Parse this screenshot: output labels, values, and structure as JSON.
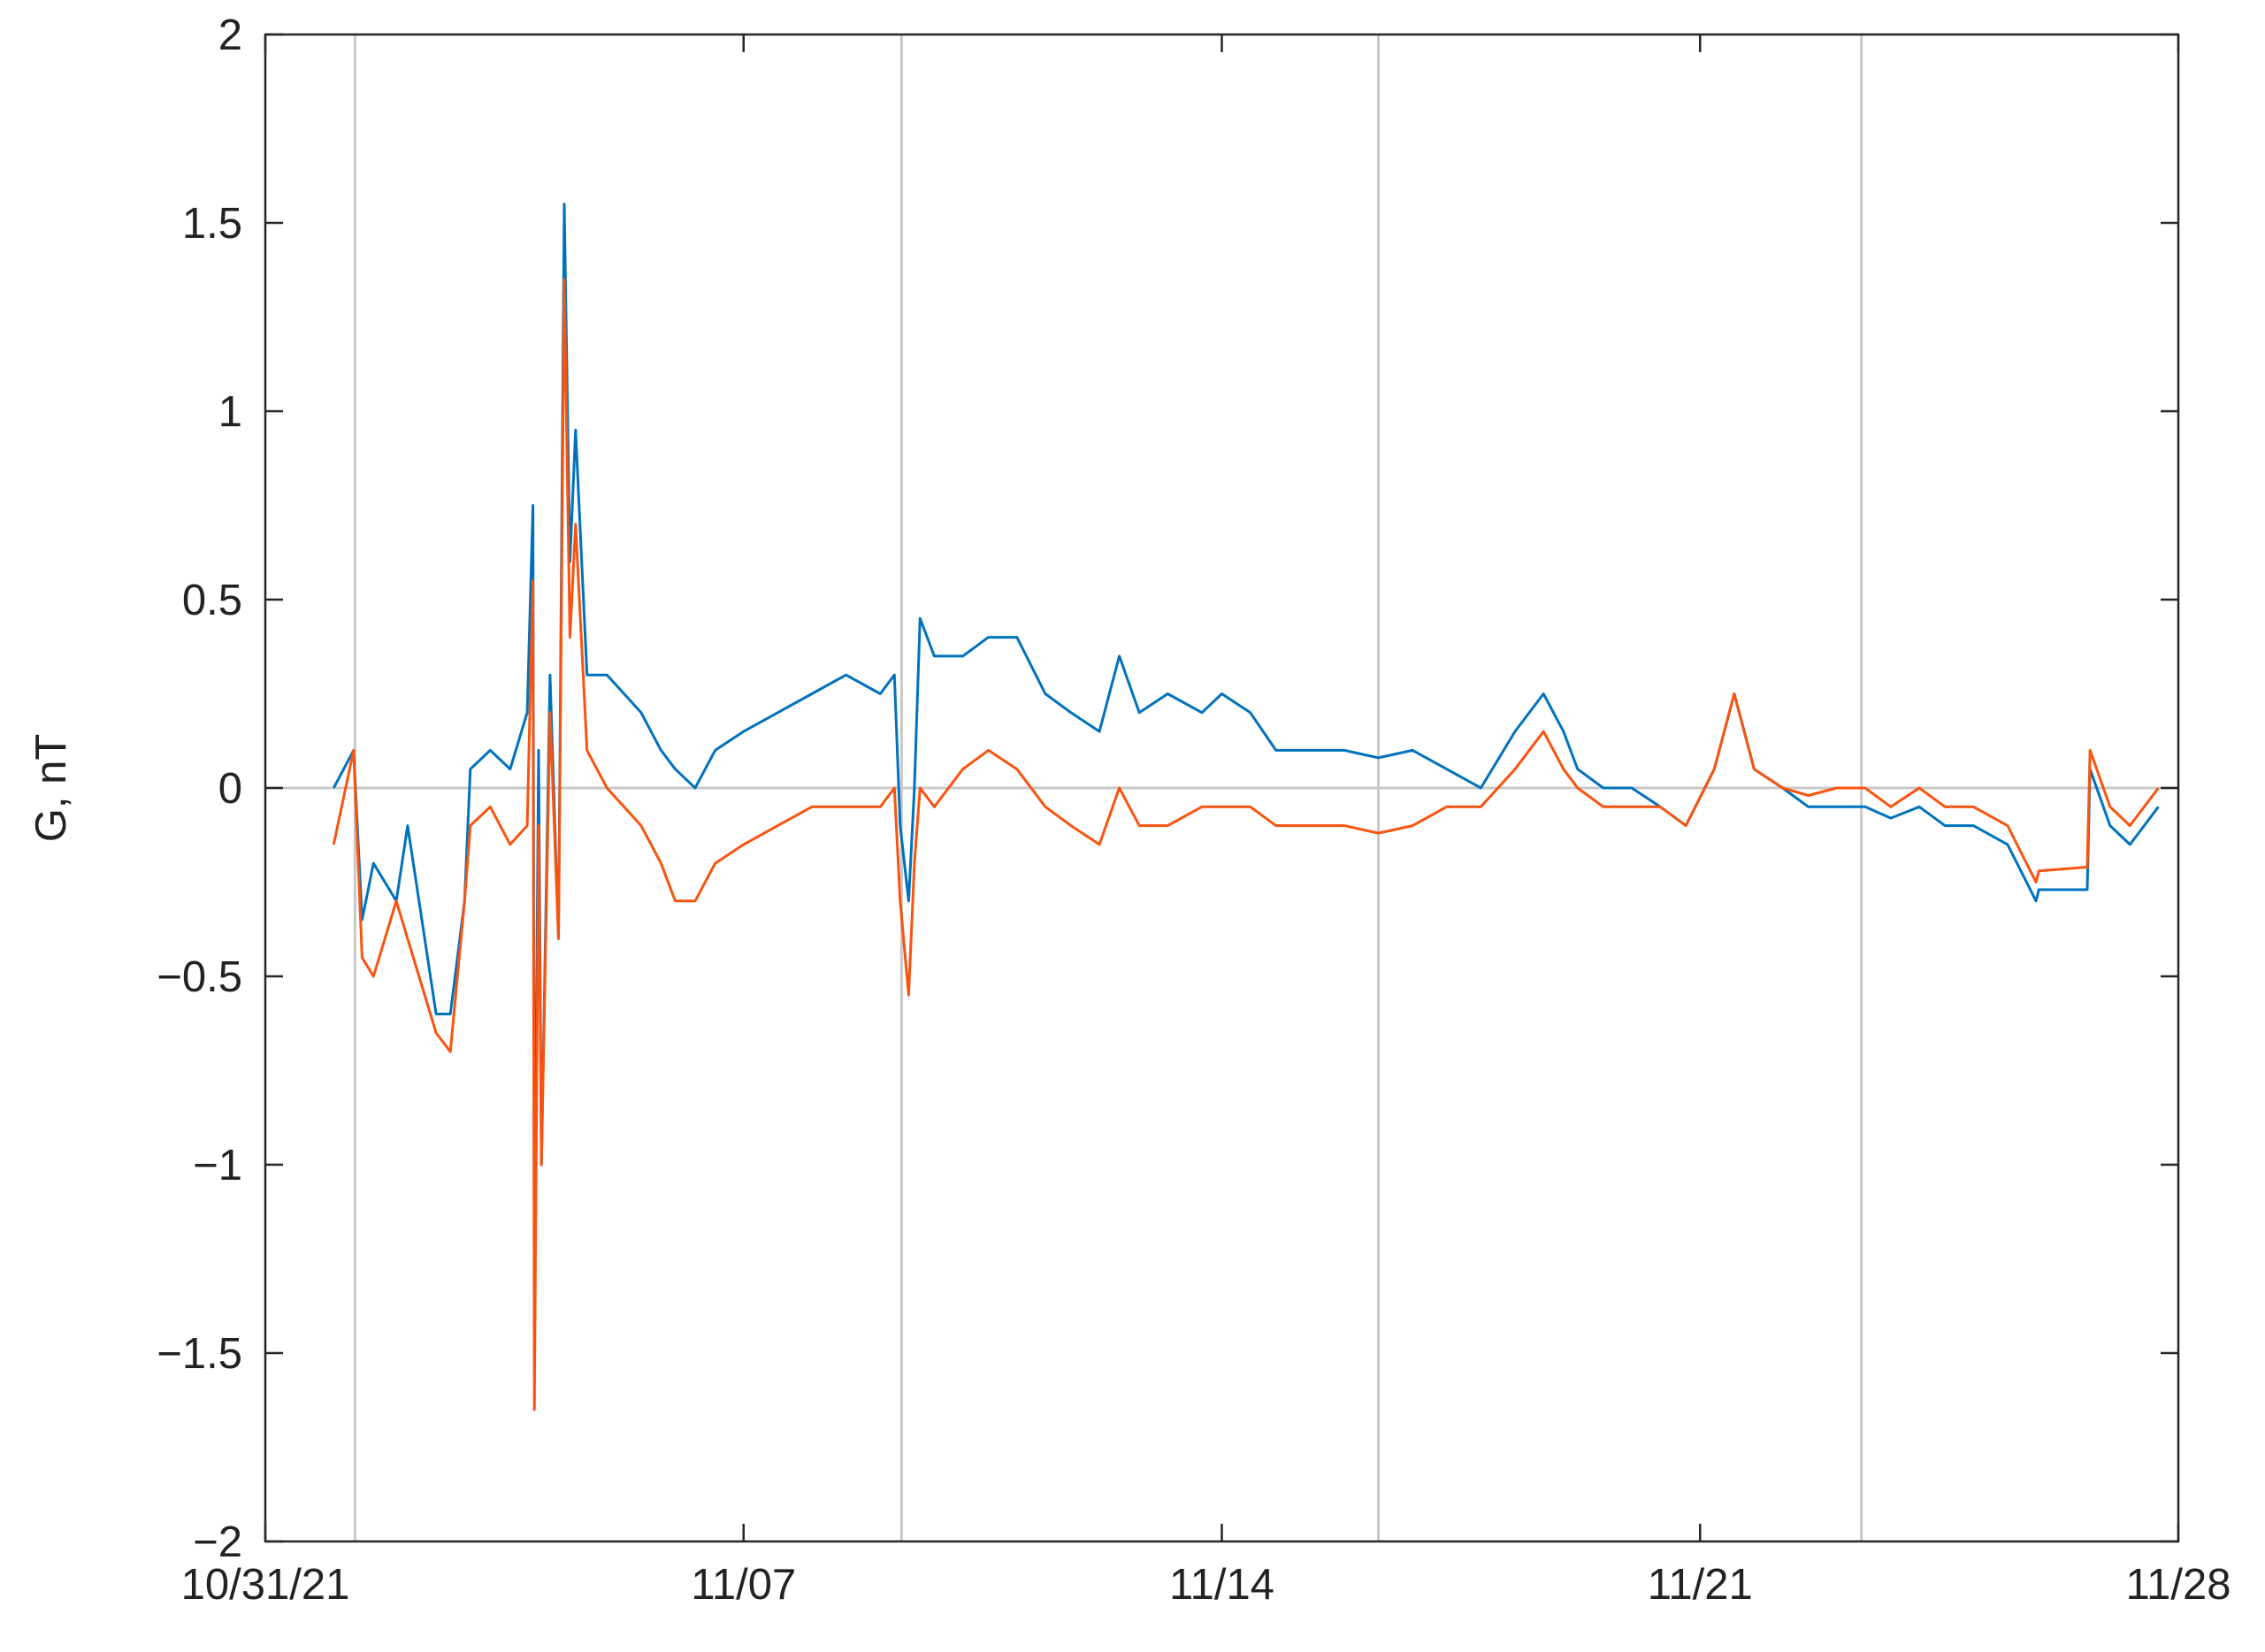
{
  "chart_data": {
    "type": "line",
    "ylabel": "G, nT",
    "x": [
      "2021-11-01T00:00",
      "2021-11-01T07:00",
      "2021-11-01T10:00",
      "2021-11-01T14:00",
      "2021-11-01T22:00",
      "2021-11-02T02:00",
      "2021-11-02T12:00",
      "2021-11-02T17:00",
      "2021-11-02T22:00",
      "2021-11-03T00:00",
      "2021-11-03T07:00",
      "2021-11-03T14:00",
      "2021-11-03T20:00",
      "2021-11-03T22:00",
      "2021-11-03T22:30",
      "2021-11-04T00:00",
      "2021-11-04T01:00",
      "2021-11-04T04:00",
      "2021-11-04T07:00",
      "2021-11-04T09:00",
      "2021-11-04T11:00",
      "2021-11-04T13:00",
      "2021-11-04T17:00",
      "2021-11-05T00:00",
      "2021-11-05T12:00",
      "2021-11-05T19:00",
      "2021-11-06T00:00",
      "2021-11-06T07:00",
      "2021-11-06T14:00",
      "2021-11-07T00:00",
      "2021-11-07T12:00",
      "2021-11-08T00:00",
      "2021-11-08T12:00",
      "2021-11-09T00:00",
      "2021-11-09T05:00",
      "2021-11-09T07:00",
      "2021-11-09T10:00",
      "2021-11-09T12:00",
      "2021-11-09T14:00",
      "2021-11-09T19:00",
      "2021-11-10T05:00",
      "2021-11-10T14:00",
      "2021-11-11T00:00",
      "2021-11-11T10:00",
      "2021-11-11T19:00",
      "2021-11-12T05:00",
      "2021-11-12T12:00",
      "2021-11-12T19:00",
      "2021-11-13T05:00",
      "2021-11-13T17:00",
      "2021-11-14T00:00",
      "2021-11-14T10:00",
      "2021-11-14T19:00",
      "2021-11-15T07:00",
      "2021-11-15T19:00",
      "2021-11-16T07:00",
      "2021-11-16T19:00",
      "2021-11-17T07:00",
      "2021-11-17T19:00",
      "2021-11-18T07:00",
      "2021-11-18T17:00",
      "2021-11-19T00:00",
      "2021-11-19T05:00",
      "2021-11-19T14:00",
      "2021-11-20T00:00",
      "2021-11-20T10:00",
      "2021-11-20T19:00",
      "2021-11-21T05:00",
      "2021-11-21T12:00",
      "2021-11-21T19:00",
      "2021-11-22T05:00",
      "2021-11-22T14:00",
      "2021-11-23T00:00",
      "2021-11-23T10:00",
      "2021-11-23T19:00",
      "2021-11-24T05:00",
      "2021-11-24T14:00",
      "2021-11-25T00:00",
      "2021-11-25T12:00",
      "2021-11-25T22:00",
      "2021-11-25T23:00",
      "2021-11-26T16:00",
      "2021-11-26T17:00",
      "2021-11-27T00:00",
      "2021-11-27T07:00",
      "2021-11-27T17:00"
    ],
    "series": [
      {
        "color": "#0072bd",
        "values": [
          0,
          0.1,
          -0.35,
          -0.2,
          -0.3,
          -0.1,
          -0.6,
          -0.6,
          -0.3,
          0.05,
          0.1,
          0.05,
          0.2,
          0.75,
          -1.3,
          0.1,
          -1.0,
          0.3,
          -0.4,
          1.55,
          0.6,
          0.95,
          0.3,
          0.3,
          0.2,
          0.1,
          0.05,
          0,
          0.1,
          0.15,
          0.2,
          0.25,
          0.3,
          0.25,
          0.3,
          -0.1,
          -0.3,
          0,
          0.45,
          0.35,
          0.35,
          0.4,
          0.4,
          0.25,
          0.2,
          0.15,
          0.35,
          0.2,
          0.25,
          0.2,
          0.25,
          0.2,
          0.1,
          0.1,
          0.1,
          0.08,
          0.1,
          0.05,
          0,
          0.15,
          0.25,
          0.15,
          0.05,
          0,
          0,
          -0.05,
          -0.1,
          0.05,
          0.25,
          0.05,
          0,
          -0.05,
          -0.05,
          -0.05,
          -0.08,
          -0.05,
          -0.1,
          -0.1,
          -0.15,
          -0.3,
          -0.27,
          -0.27,
          0.05,
          -0.1,
          -0.15,
          -0.05
        ]
      },
      {
        "color": "#f85410",
        "values": [
          -0.15,
          0.1,
          -0.45,
          -0.5,
          -0.3,
          -0.4,
          -0.65,
          -0.7,
          -0.3,
          -0.1,
          -0.05,
          -0.15,
          -0.1,
          0.55,
          -1.65,
          -0.1,
          -1.0,
          0.2,
          -0.4,
          1.35,
          0.4,
          0.7,
          0.1,
          0,
          -0.1,
          -0.2,
          -0.3,
          -0.3,
          -0.2,
          -0.15,
          -0.1,
          -0.05,
          -0.05,
          -0.05,
          0,
          -0.3,
          -0.55,
          -0.2,
          0,
          -0.05,
          0.05,
          0.1,
          0.05,
          -0.05,
          -0.1,
          -0.15,
          0,
          -0.1,
          -0.1,
          -0.05,
          -0.05,
          -0.05,
          -0.1,
          -0.1,
          -0.1,
          -0.12,
          -0.1,
          -0.05,
          -0.05,
          0.05,
          0.15,
          0.05,
          0,
          -0.05,
          -0.05,
          -0.05,
          -0.1,
          0.05,
          0.25,
          0.05,
          0,
          -0.02,
          0,
          0,
          -0.05,
          0,
          -0.05,
          -0.05,
          -0.1,
          -0.25,
          -0.22,
          -0.21,
          0.1,
          -0.05,
          -0.1,
          0
        ]
      }
    ],
    "xlim": [
      "2021-10-31T00:00",
      "2021-11-28T00:00"
    ],
    "xticks": [
      {
        "value": "2021-10-31T00:00",
        "label": "10/31/21"
      },
      {
        "value": "2021-11-07T00:00",
        "label": "11/07"
      },
      {
        "value": "2021-11-14T00:00",
        "label": "11/14"
      },
      {
        "value": "2021-11-21T00:00",
        "label": "11/21"
      },
      {
        "value": "2021-11-28T00:00",
        "label": "11/28"
      }
    ],
    "ylim": [
      -2,
      2
    ],
    "yticks": [
      {
        "value": -2,
        "label": "−2"
      },
      {
        "value": -1.5,
        "label": "−1.5"
      },
      {
        "value": -1,
        "label": "−1"
      },
      {
        "value": -0.5,
        "label": "−0.5"
      },
      0,
      0.5,
      1,
      1.5,
      2
    ],
    "reference_lines": {
      "x": [
        "2021-11-01T07:30",
        "2021-11-09T07:30",
        "2021-11-16T07:00",
        "2021-11-23T08:40"
      ],
      "y": [
        0
      ]
    }
  }
}
